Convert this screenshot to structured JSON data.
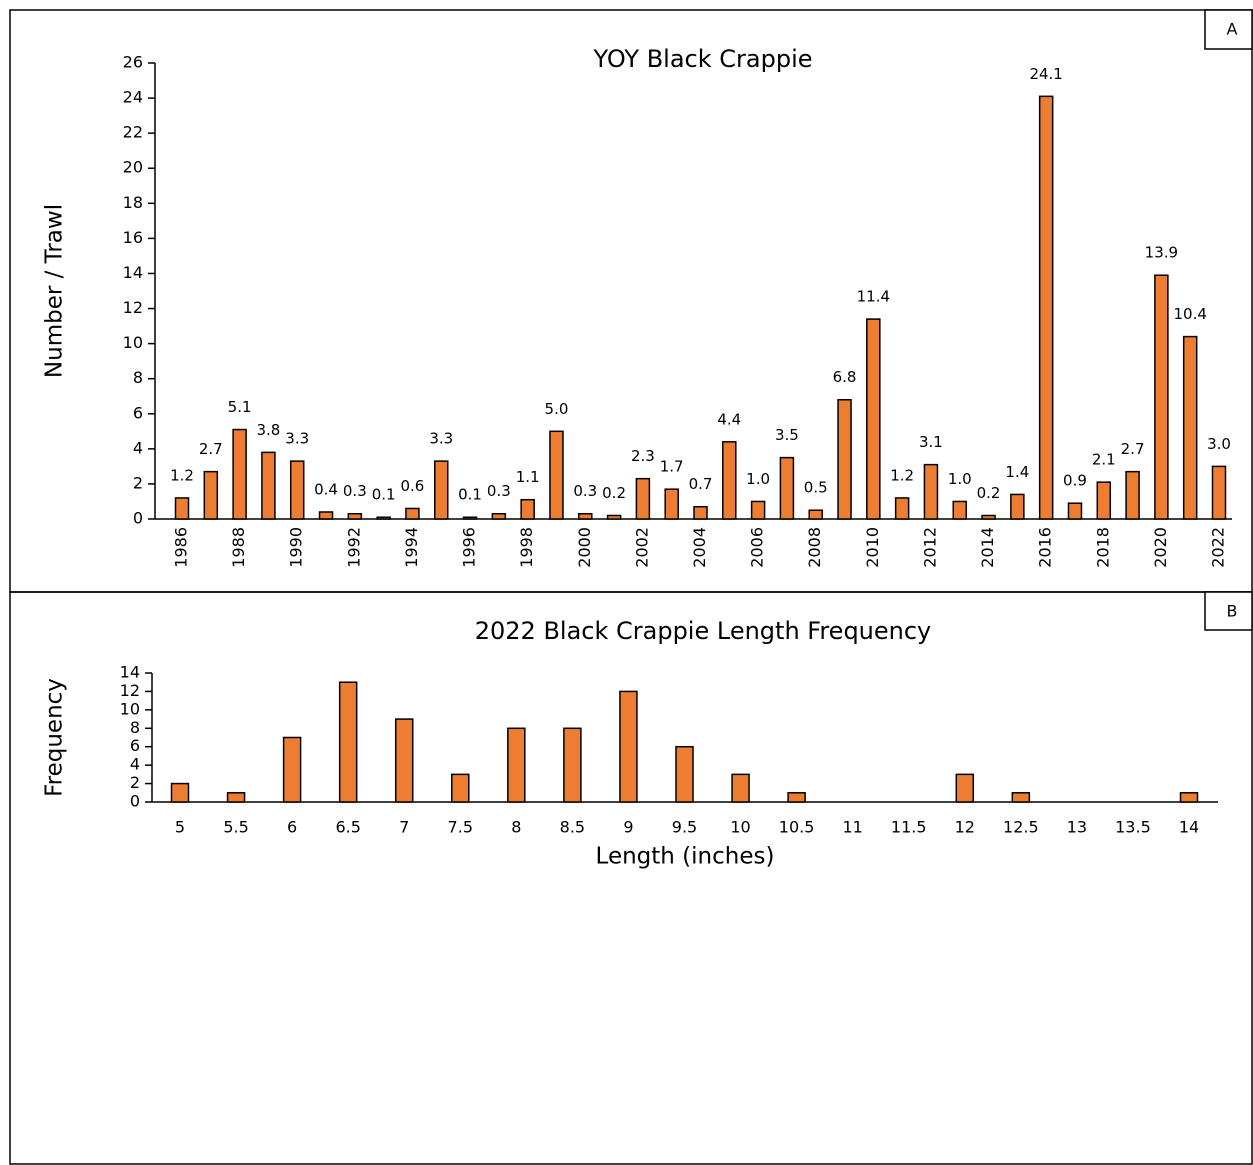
{
  "chart_data": [
    {
      "type": "bar",
      "title": "YOY Black Crappie",
      "panel_label": "A",
      "y_label": "Number / Trawl",
      "categories": [
        "1986",
        null,
        "1988",
        null,
        "1990",
        null,
        "1992",
        null,
        "1994",
        null,
        "1996",
        null,
        "1998",
        null,
        "2000",
        null,
        "2002",
        null,
        "2004",
        null,
        "2006",
        null,
        "2008",
        null,
        "2010",
        null,
        "2012",
        null,
        "2014",
        null,
        "2016",
        null,
        "2018",
        null,
        "2020",
        null,
        "2022"
      ],
      "values": [
        1.2,
        2.7,
        5.1,
        3.8,
        3.3,
        0.4,
        0.3,
        0.1,
        0.6,
        3.3,
        0.1,
        0.3,
        1.1,
        5.0,
        0.3,
        0.2,
        2.3,
        1.7,
        0.7,
        4.4,
        1.0,
        3.5,
        0.5,
        6.8,
        11.4,
        1.2,
        3.1,
        1.0,
        0.2,
        1.4,
        24.1,
        0.9,
        2.1,
        2.7,
        13.9,
        10.4,
        3.0
      ],
      "value_labels": [
        "1.2",
        "2.7",
        "5.1",
        "3.8",
        "3.3",
        "0.4",
        "0.3",
        "0.1",
        "0.6",
        "3.3",
        "0.1",
        "0.3",
        "1.1",
        "5.0",
        "0.3",
        "0.2",
        "2.3",
        "1.7",
        "0.7",
        "4.4",
        "1.0",
        "3.5",
        "0.5",
        "6.8",
        "11.4",
        "1.2",
        "3.1",
        "1.0",
        "0.2",
        "1.4",
        "24.1",
        "0.9",
        "2.1",
        "2.7",
        "13.9",
        "10.4",
        "3.0"
      ],
      "color": "#ed7d31",
      "ylim": [
        0,
        26
      ],
      "yticks": [
        0,
        2,
        4,
        6,
        8,
        10,
        12,
        14,
        16,
        18,
        20,
        22,
        24,
        26
      ]
    },
    {
      "type": "bar",
      "title": "2022 Black Crappie Length Frequency",
      "panel_label": "B",
      "x_label": "Length (inches)",
      "y_label": "Frequency",
      "categories": [
        "5",
        "5.5",
        "6",
        "6.5",
        "7",
        "7.5",
        "8",
        "8.5",
        "9",
        "9.5",
        "10",
        "10.5",
        "11",
        "11.5",
        "12",
        "12.5",
        "13",
        "13.5",
        "14"
      ],
      "values": [
        2,
        1,
        7,
        13,
        9,
        3,
        8,
        8,
        12,
        6,
        3,
        1,
        0,
        0,
        3,
        1,
        0,
        0,
        1
      ],
      "color": "#ed7d31",
      "ylim": [
        0,
        14
      ],
      "yticks": [
        0,
        2,
        4,
        6,
        8,
        10,
        12,
        14
      ]
    }
  ]
}
